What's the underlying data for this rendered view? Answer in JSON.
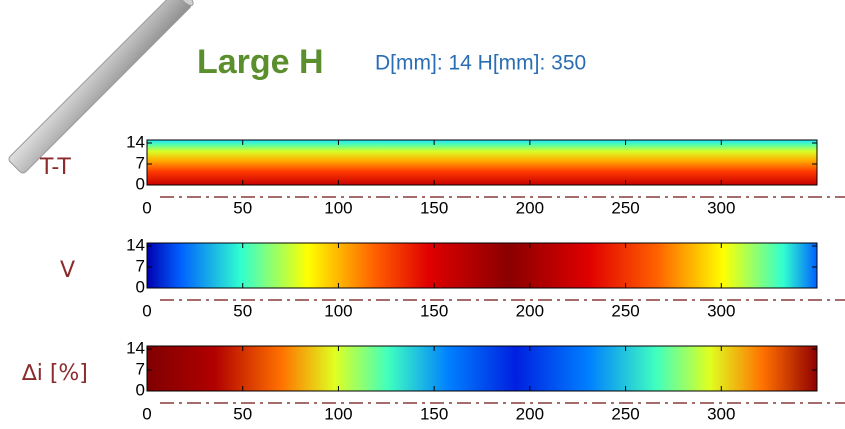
{
  "header": {
    "title": "Large H",
    "subtitle": "D[mm]: 14 H[mm]: 350"
  },
  "plots": [
    {
      "label": "T-T",
      "xlim": [
        0,
        350
      ],
      "xticks": [
        0,
        50,
        100,
        150,
        200,
        250,
        300
      ],
      "ylim": [
        0,
        15
      ],
      "yticks": [
        0,
        7,
        14
      ]
    },
    {
      "label": "V",
      "xlim": [
        0,
        350
      ],
      "xticks": [
        0,
        50,
        100,
        150,
        200,
        250,
        300
      ],
      "ylim": [
        0,
        15
      ],
      "yticks": [
        0,
        7,
        14
      ]
    },
    {
      "label": "∆i [%]",
      "xlim": [
        0,
        350
      ],
      "xticks": [
        0,
        50,
        100,
        150,
        200,
        250,
        300
      ],
      "ylim": [
        0,
        15
      ],
      "yticks": [
        0,
        7,
        14
      ]
    }
  ]
}
